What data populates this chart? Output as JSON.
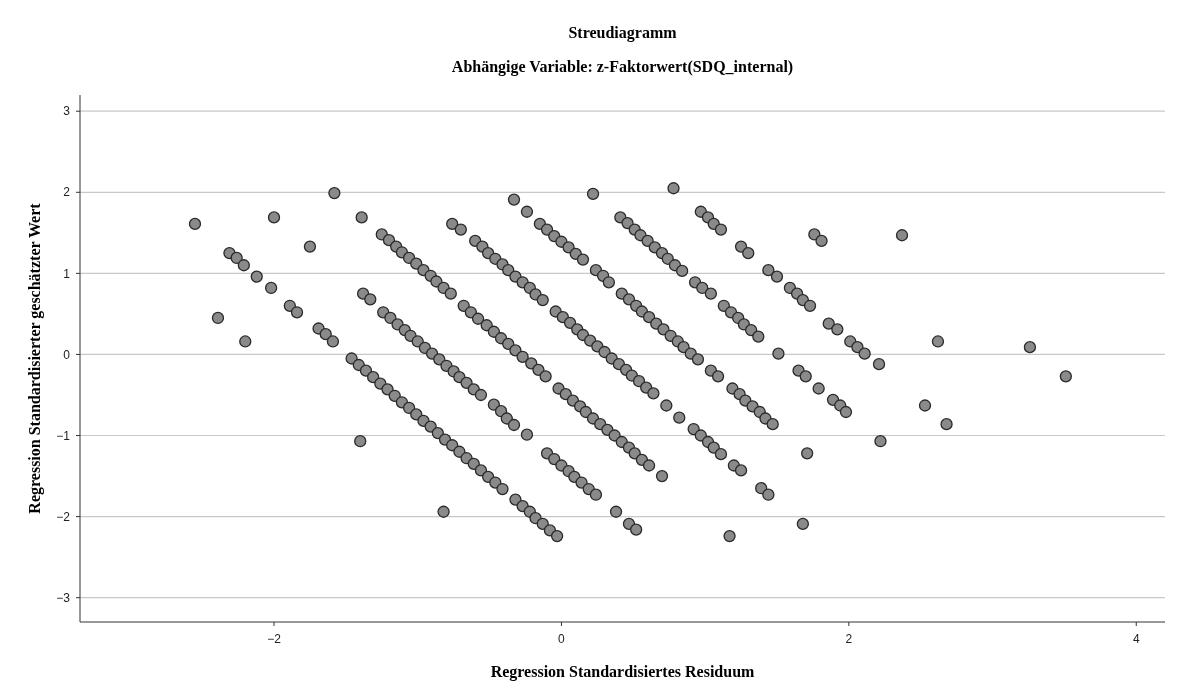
{
  "chart_data": {
    "type": "scatter",
    "title": "Streudiagramm",
    "subtitle": "Abhängige Variable: z-Faktorwert(SDQ_internal)",
    "xlabel": "Regression Standardisiertes Residuum",
    "ylabel": "Regression Standardisierter geschätzter Wert",
    "xlim": [
      -3.35,
      4.2
    ],
    "ylim": [
      -3.3,
      3.2
    ],
    "xticks": [
      -2,
      0,
      2,
      4
    ],
    "yticks": [
      -3,
      -2,
      -1,
      0,
      1,
      2,
      3
    ],
    "grid": "y",
    "marker": "circle",
    "color": "#8a8a8a",
    "x": [
      -1.46,
      -1.41,
      -1.36,
      -1.31,
      -1.26,
      -1.21,
      -1.16,
      -1.11,
      -1.06,
      -1.01,
      -0.96,
      -0.91,
      -0.86,
      -0.81,
      -0.76,
      -0.71,
      -0.66,
      -0.61,
      -0.56,
      -0.51,
      -0.46,
      -0.41,
      -0.32,
      -0.27,
      -0.22,
      -0.18,
      -0.13,
      -0.08,
      -0.03,
      -1.38,
      -1.33,
      -1.24,
      -1.19,
      -1.14,
      -1.09,
      -1.05,
      -1.0,
      -0.95,
      -0.9,
      -0.85,
      -0.8,
      -0.75,
      -0.71,
      -0.66,
      -0.61,
      -0.56,
      -0.47,
      -0.42,
      -0.38,
      -0.33,
      -0.24,
      -0.1,
      -0.05,
      0.0,
      0.05,
      0.09,
      0.14,
      0.19,
      0.24,
      0.38,
      0.47,
      0.52,
      -1.25,
      -1.2,
      -1.15,
      -1.11,
      -1.06,
      -1.01,
      -0.96,
      -0.91,
      -0.87,
      -0.82,
      -0.77,
      -0.68,
      -0.63,
      -0.58,
      -0.52,
      -0.47,
      -0.42,
      -0.37,
      -0.32,
      -0.27,
      -0.21,
      -0.16,
      -0.11,
      -0.02,
      0.03,
      0.08,
      0.13,
      0.17,
      0.22,
      0.27,
      0.32,
      0.37,
      0.42,
      0.47,
      0.51,
      0.56,
      0.61,
      0.7,
      -0.76,
      -0.7,
      -0.6,
      -0.55,
      -0.51,
      -0.46,
      -0.41,
      -0.37,
      -0.32,
      -0.27,
      -0.22,
      -0.18,
      -0.13,
      -0.04,
      0.01,
      0.06,
      0.11,
      0.15,
      0.2,
      0.25,
      0.3,
      0.35,
      0.4,
      0.45,
      0.49,
      0.54,
      0.59,
      0.64,
      0.73,
      0.82,
      0.92,
      0.97,
      1.02,
      1.06,
      1.11,
      1.2,
      1.25,
      1.39,
      1.44,
      -0.15,
      -0.1,
      -0.05,
      0.0,
      0.05,
      0.1,
      0.15,
      0.24,
      0.29,
      0.33,
      0.42,
      0.47,
      0.52,
      0.56,
      0.61,
      0.66,
      0.71,
      0.76,
      0.81,
      0.85,
      0.9,
      0.95,
      1.04,
      1.09,
      1.19,
      1.24,
      1.28,
      1.33,
      1.38,
      1.42,
      1.47,
      0.41,
      0.46,
      0.51,
      0.55,
      0.6,
      0.65,
      0.7,
      0.74,
      0.79,
      0.84,
      0.93,
      0.98,
      1.04,
      1.13,
      1.18,
      1.23,
      1.27,
      1.32,
      1.37,
      1.51,
      0.97,
      1.02,
      1.06,
      1.11,
      1.25,
      1.3,
      1.44,
      1.5,
      1.59,
      1.64,
      1.68,
      1.73,
      1.86,
      1.92,
      2.01,
      2.06,
      2.11,
      2.21,
      1.65,
      1.7,
      1.79,
      1.89,
      1.94,
      1.98,
      -2.31,
      -2.26,
      -2.21,
      -2.12,
      -2.02,
      -1.89,
      -1.84,
      -1.69,
      -1.64,
      -1.59,
      -2.55,
      -2.39,
      -2.2,
      -2.0,
      -1.75,
      -1.58,
      -1.39,
      -1.4,
      -0.82,
      -0.33,
      -0.24,
      0.22,
      0.78,
      1.76,
      1.81,
      2.37,
      2.62,
      3.26,
      3.51,
      2.53,
      2.68,
      2.22,
      1.71,
      1.17,
      1.68
    ],
    "values": [
      -0.05,
      -0.13,
      -0.2,
      -0.28,
      -0.36,
      -0.43,
      -0.51,
      -0.59,
      -0.66,
      -0.74,
      -0.82,
      -0.89,
      -0.97,
      -1.05,
      -1.12,
      -1.2,
      -1.28,
      -1.35,
      -1.43,
      -1.51,
      -1.58,
      -1.66,
      -1.79,
      -1.87,
      -1.94,
      -2.02,
      -2.09,
      -2.17,
      -2.24,
      0.75,
      0.68,
      0.52,
      0.45,
      0.37,
      0.3,
      0.23,
      0.16,
      0.08,
      0.01,
      -0.06,
      -0.14,
      -0.21,
      -0.28,
      -0.35,
      -0.43,
      -0.5,
      -0.62,
      -0.7,
      -0.79,
      -0.87,
      -0.99,
      -1.22,
      -1.29,
      -1.37,
      -1.44,
      -1.51,
      -1.58,
      -1.66,
      -1.73,
      -1.94,
      -2.09,
      -2.16,
      1.48,
      1.41,
      1.33,
      1.26,
      1.19,
      1.12,
      1.04,
      0.97,
      0.9,
      0.82,
      0.75,
      0.6,
      0.52,
      0.44,
      0.36,
      0.28,
      0.2,
      0.13,
      0.05,
      -0.03,
      -0.11,
      -0.19,
      -0.27,
      -0.42,
      -0.49,
      -0.57,
      -0.64,
      -0.71,
      -0.79,
      -0.86,
      -0.93,
      -1.0,
      -1.08,
      -1.15,
      -1.22,
      -1.3,
      -1.37,
      -1.5,
      1.61,
      1.54,
      1.4,
      1.33,
      1.25,
      1.18,
      1.11,
      1.04,
      0.96,
      0.89,
      0.82,
      0.74,
      0.67,
      0.53,
      0.46,
      0.39,
      0.31,
      0.24,
      0.17,
      0.1,
      0.03,
      -0.05,
      -0.12,
      -0.19,
      -0.26,
      -0.33,
      -0.41,
      -0.48,
      -0.63,
      -0.78,
      -0.92,
      -1.0,
      -1.08,
      -1.15,
      -1.23,
      -1.37,
      -1.43,
      -1.65,
      -1.73,
      1.61,
      1.54,
      1.46,
      1.39,
      1.32,
      1.24,
      1.17,
      1.04,
      0.97,
      0.89,
      0.75,
      0.68,
      0.6,
      0.53,
      0.46,
      0.38,
      0.31,
      0.23,
      0.16,
      0.09,
      0.01,
      -0.06,
      -0.2,
      -0.27,
      -0.42,
      -0.49,
      -0.57,
      -0.64,
      -0.71,
      -0.79,
      -0.86,
      1.69,
      1.62,
      1.54,
      1.47,
      1.4,
      1.32,
      1.25,
      1.18,
      1.1,
      1.03,
      0.89,
      0.82,
      0.75,
      0.6,
      0.52,
      0.45,
      0.37,
      0.3,
      0.22,
      0.01,
      1.76,
      1.69,
      1.61,
      1.54,
      1.33,
      1.25,
      1.04,
      0.96,
      0.82,
      0.75,
      0.67,
      0.6,
      0.38,
      0.31,
      0.16,
      0.09,
      0.01,
      -0.12,
      -0.2,
      -0.27,
      -0.42,
      -0.56,
      -0.63,
      -0.71,
      1.25,
      1.19,
      1.1,
      0.96,
      0.82,
      0.6,
      0.52,
      0.32,
      0.25,
      0.16,
      1.61,
      0.45,
      0.16,
      1.69,
      1.33,
      1.99,
      1.69,
      -1.07,
      -1.94,
      1.91,
      1.76,
      1.98,
      2.05,
      1.48,
      1.4,
      1.47,
      0.16,
      0.09,
      -0.27,
      -0.63,
      -0.86,
      -1.07,
      -1.22,
      -2.24,
      -2.09
    ]
  }
}
